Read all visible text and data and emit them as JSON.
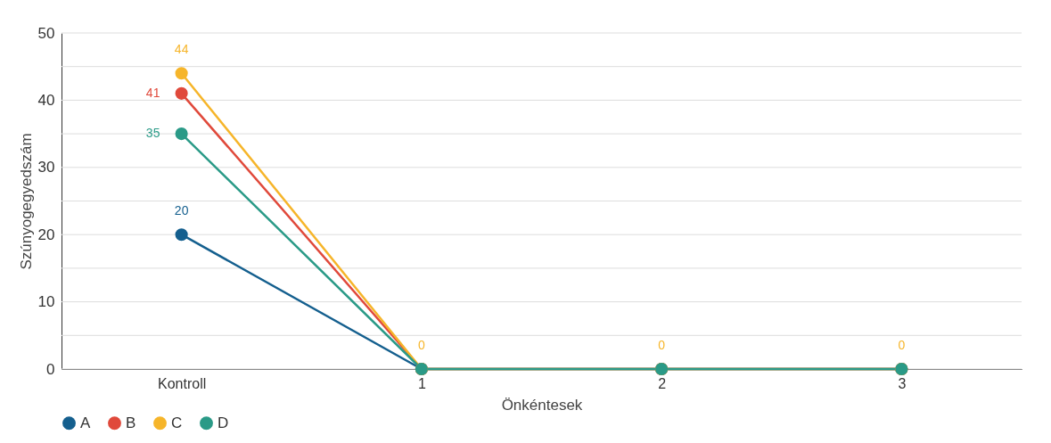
{
  "chart_data": {
    "type": "line",
    "xlabel": "Önkéntesek",
    "ylabel": "Szúnyogegyedszám",
    "categories": [
      "Kontroll",
      "1",
      "2",
      "3"
    ],
    "series": [
      {
        "name": "A",
        "color": "#145f8e",
        "values": [
          20,
          0,
          0,
          0
        ],
        "value_labels": [
          "20",
          null,
          null,
          null
        ]
      },
      {
        "name": "B",
        "color": "#e0493b",
        "values": [
          41,
          0,
          0,
          0
        ],
        "value_labels": [
          "41",
          null,
          null,
          null
        ]
      },
      {
        "name": "C",
        "color": "#f6b52a",
        "values": [
          44,
          0,
          0,
          0
        ],
        "value_labels": [
          "44",
          "0",
          "0",
          "0"
        ]
      },
      {
        "name": "D",
        "color": "#2a9a87",
        "values": [
          35,
          0,
          0,
          0
        ],
        "value_labels": [
          "35",
          null,
          null,
          null
        ]
      }
    ],
    "ylim": [
      0,
      50
    ],
    "yticks": [
      0,
      {
        "value": 5,
        "label": null
      },
      10,
      {
        "value": 15,
        "label": null
      },
      20,
      {
        "value": 25,
        "label": null
      },
      30,
      {
        "value": 35,
        "label": null
      },
      40,
      {
        "value": 45,
        "label": null
      },
      50
    ],
    "grid": "y",
    "legend": "bottom",
    "marker": "circle",
    "line_style": "solid"
  }
}
